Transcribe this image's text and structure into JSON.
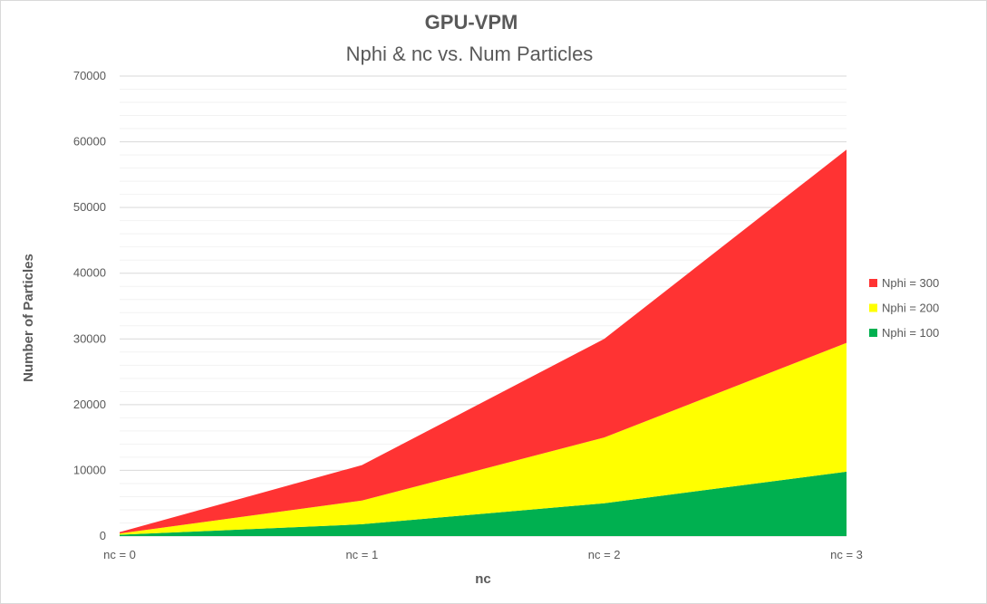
{
  "chart_data": {
    "type": "area",
    "stacked": true,
    "title": "GPU-VPM",
    "subtitle": "Nphi & nc vs. Num Particles",
    "xlabel": "nc",
    "ylabel": "Number of Particles",
    "categories": [
      "nc = 0",
      "nc = 1",
      "nc = 2",
      "nc = 3"
    ],
    "ylim": [
      0,
      70000
    ],
    "yticks": [
      0,
      10000,
      20000,
      30000,
      40000,
      50000,
      60000,
      70000
    ],
    "minor_step": 2000,
    "grid": true,
    "legend_position": "right",
    "series": [
      {
        "name": "Nphi = 100",
        "color": "#00b050",
        "values": [
          200,
          1800,
          5000,
          9800
        ]
      },
      {
        "name": "Nphi = 200",
        "color": "#ffff00",
        "values": [
          200,
          3600,
          10000,
          19600
        ]
      },
      {
        "name": "Nphi = 300",
        "color": "#ff3333",
        "values": [
          200,
          5400,
          15000,
          29400
        ]
      }
    ],
    "legend_order": [
      "Nphi = 300",
      "Nphi = 200",
      "Nphi = 100"
    ]
  }
}
